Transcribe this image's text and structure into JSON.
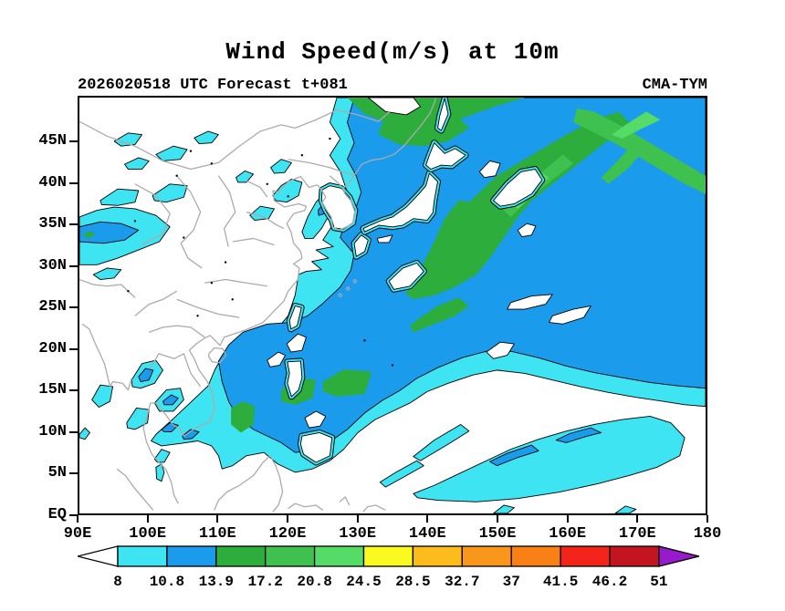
{
  "title": "Wind Speed(m/s) at 10m",
  "header": {
    "left": "2026020518 UTC Forecast t+081",
    "right": "CMA-TYM"
  },
  "axes": {
    "lat_labels": [
      "EQ",
      "5N",
      "10N",
      "15N",
      "20N",
      "25N",
      "30N",
      "35N",
      "40N",
      "45N"
    ],
    "lon_labels": [
      "90E",
      "100E",
      "110E",
      "120E",
      "130E",
      "140E",
      "150E",
      "160E",
      "170E",
      "180"
    ]
  },
  "colorbar": {
    "labels": [
      "8",
      "10.8",
      "13.9",
      "17.2",
      "20.8",
      "24.5",
      "28.5",
      "32.7",
      "37",
      "41.5",
      "46.2",
      "51"
    ],
    "segment_colors": [
      "#3FE4F2",
      "#1B9BEC",
      "#2CAD3C",
      "#3EC14E",
      "#55DC66",
      "#FAFA20",
      "#FBBC1C",
      "#F9961C",
      "#F88014",
      "#F3241A",
      "#C41420"
    ],
    "below_color": "#FFFFFF",
    "above_color": "#971BCB"
  },
  "colors": {
    "cyan": "#3FE4F2",
    "blue": "#1B9BEC",
    "g1": "#2CAD3C",
    "g2": "#3EC14E",
    "g3": "#55DC66",
    "coast": "#ABABAB",
    "contour": "#000000"
  },
  "chart_data": {
    "type": "heatmap",
    "title": "Wind Speed(m/s) at 10m",
    "subtitle_left": "2026020518 UTC Forecast t+081",
    "subtitle_right": "CMA-TYM",
    "units": "m/s",
    "x_ticks": [
      "90E",
      "100E",
      "110E",
      "120E",
      "130E",
      "140E",
      "150E",
      "160E",
      "170E",
      "180"
    ],
    "y_ticks": [
      "EQ",
      "5N",
      "10N",
      "15N",
      "20N",
      "25N",
      "30N",
      "35N",
      "40N",
      "45N"
    ],
    "x_range_deg_east": [
      90,
      180
    ],
    "y_range_deg_north": [
      0,
      50.5
    ],
    "levels": [
      8,
      10.8,
      13.9,
      17.2,
      20.8,
      24.5,
      28.5,
      32.7,
      37,
      41.5,
      46.2,
      51
    ],
    "level_colors_below_to_above": [
      "#FFFFFF",
      "#3FE4F2",
      "#1B9BEC",
      "#2CAD3C",
      "#3EC14E",
      "#55DC66",
      "#FAFA20",
      "#FBBC1C",
      "#F9961C",
      "#F88014",
      "#F3241A",
      "#C41420",
      "#971BCB"
    ],
    "legend_position": "bottom",
    "notes": "Filled-contour wind speed map; shading on this frame is only in the 8-24.5 m/s range (cyan, blue, greens) over the NW Pacific, Sea of Japan, East/South China Seas, Tibetan Plateau and Indochina; gray lines are coastlines/borders."
  }
}
